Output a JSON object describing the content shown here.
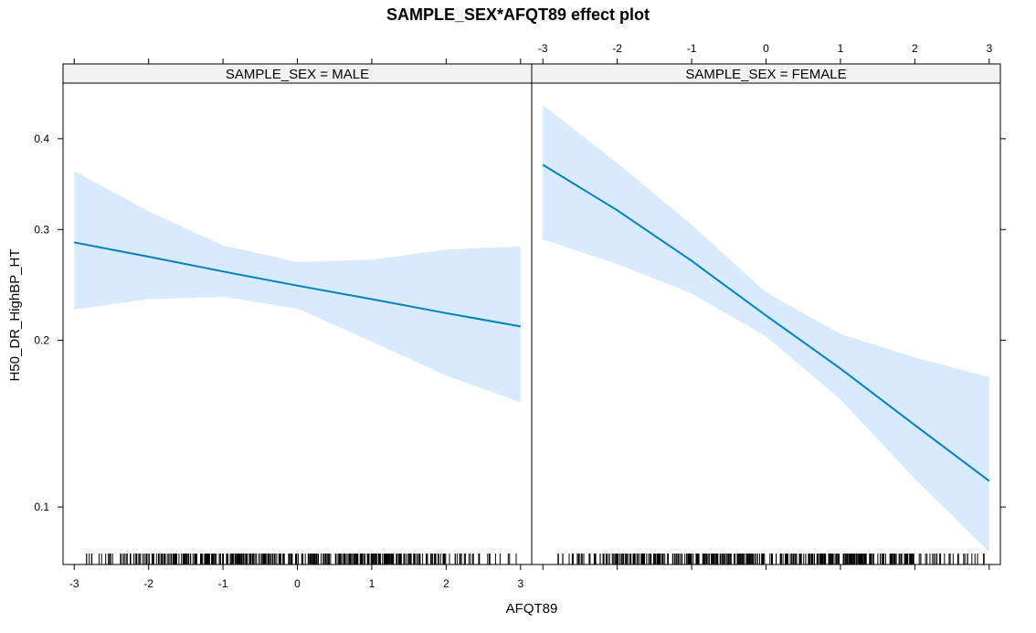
{
  "chart_data": {
    "type": "line",
    "title": "SAMPLE_SEX*AFQT89 effect plot",
    "xlabel": "AFQT89",
    "ylabel": "H50_DR_HighBP_HT",
    "xlim": [
      -3.15,
      3.15
    ],
    "ylim": [
      0.0775,
      0.4663
    ],
    "y_scale": "logit",
    "x_ticks": [
      "-3",
      "-2",
      "-1",
      "0",
      "1",
      "2",
      "3"
    ],
    "y_ticks": [
      "0.1",
      "0.2",
      "0.3",
      "0.4"
    ],
    "grid": false,
    "panels": [
      {
        "strip": "SAMPLE_SEX = MALE",
        "series": [
          {
            "x": [
              -3,
              -2,
              -1,
              0,
              1,
              2,
              3
            ],
            "fit": [
              0.287,
              0.273,
              0.259,
              0.246,
              0.234,
              0.222,
              0.211
            ],
            "lower": [
              0.225,
              0.234,
              0.236,
              0.226,
              0.199,
              0.174,
              0.156
            ],
            "upper": [
              0.363,
              0.319,
              0.284,
              0.268,
              0.27,
              0.28,
              0.283
            ]
          }
        ],
        "rug": "dense -2.8 to 3"
      },
      {
        "strip": "SAMPLE_SEX = FEMALE",
        "series": [
          {
            "x": [
              -3,
              -2,
              -1,
              0,
              1,
              2,
              3
            ],
            "fit": [
              0.37,
              0.32,
              0.269,
              0.22,
              0.179,
              0.142,
              0.112
            ],
            "lower": [
              0.29,
              0.266,
              0.239,
              0.203,
              0.158,
              0.113,
              0.082
            ],
            "upper": [
              0.44,
              0.372,
              0.305,
              0.24,
              0.205,
              0.187,
              0.173
            ]
          }
        ],
        "rug": "dense -2.8 to 3"
      }
    ],
    "colors": {
      "line": "#0080c0",
      "band": "#d8eafd",
      "axis": "#000000",
      "strip_bg": "#f2f2f2"
    }
  }
}
